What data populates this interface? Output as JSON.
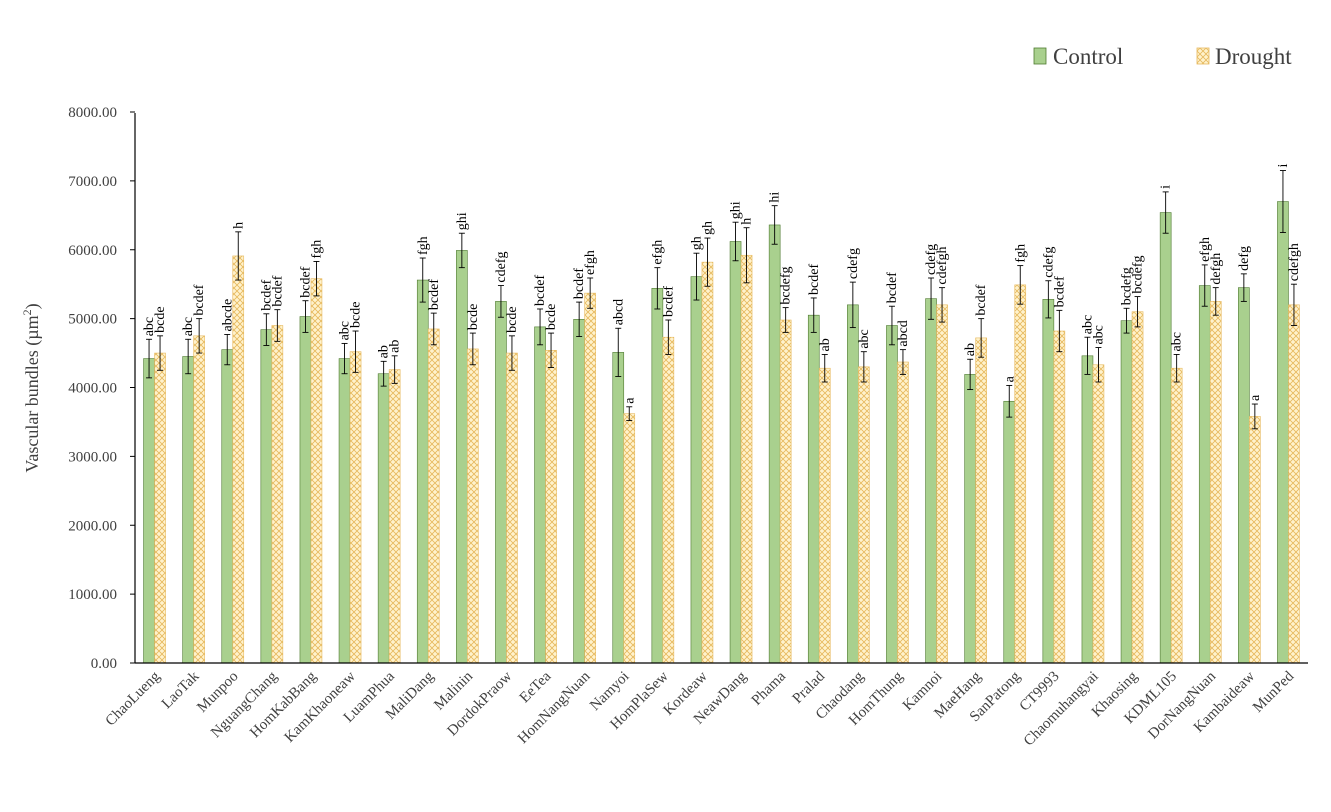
{
  "chart_data": {
    "type": "bar",
    "ylabel": "Vascular bundles (µm²)",
    "ylabel_main": "Vascular bundles (µm",
    "ylabel_sup": "2",
    "ylabel_tail": ")",
    "ylim": [
      0,
      8000
    ],
    "yticks": [
      "0.00",
      "1000.00",
      "2000.00",
      "3000.00",
      "4000.00",
      "5000.00",
      "6000.00",
      "7000.00",
      "8000.00"
    ],
    "legend_position": "top-right",
    "grid": false,
    "categories": [
      "ChaoLueng",
      "LaoTak",
      "Munpoo",
      "NguangChang",
      "HomKabBang",
      "KamKhaoneaw",
      "LuamPhua",
      "MaliDang",
      "Malinin",
      "DordokPraow",
      "EeTea",
      "HomNangNuan",
      "Namyoi",
      "HomPlaSew",
      "Kordeaw",
      "NeawDang",
      "Phama",
      "Pralad",
      "Chaodang",
      "HomThung",
      "Kamnoi",
      "MaeHang",
      "SanPatong",
      "CT9993",
      "Chaomuhangyai",
      "Khaosing",
      "KDML105",
      "DorNangNuan",
      "Kambaideaw",
      "MunPed"
    ],
    "series": [
      {
        "name": "Control",
        "color": "#a9d08e",
        "values": [
          4420,
          4450,
          4550,
          4840,
          5030,
          4420,
          4200,
          5560,
          5990,
          5250,
          4880,
          4990,
          4510,
          5440,
          5610,
          6120,
          6360,
          5050,
          5200,
          4900,
          5290,
          4190,
          3800,
          5280,
          4460,
          4970,
          6540,
          5480,
          5450,
          6700
        ],
        "errors": [
          280,
          250,
          220,
          230,
          230,
          220,
          180,
          320,
          250,
          230,
          260,
          250,
          350,
          300,
          340,
          280,
          280,
          250,
          330,
          280,
          300,
          220,
          230,
          270,
          270,
          180,
          300,
          300,
          200,
          450
        ],
        "labels": [
          "abc",
          "abc",
          "abcde",
          "bcdef",
          "bcdef",
          "abc",
          "ab",
          "fgh",
          "ghi",
          "cdefg",
          "bcdef",
          "bcdef",
          "abcd",
          "efgh",
          "gh",
          "ghi",
          "hi",
          "bcdef",
          "cdefg",
          "bcdef",
          "cdefg",
          "ab",
          "a",
          "cdefg",
          "abc",
          "bcdefg",
          "i",
          "efgh",
          "defg",
          "i"
        ]
      },
      {
        "name": "Drought",
        "color": "#fff2cc",
        "values": [
          4500,
          4750,
          5910,
          4900,
          5580,
          4520,
          4260,
          4850,
          4560,
          4500,
          4540,
          5370,
          3620,
          4730,
          5820,
          5920,
          4980,
          4280,
          4300,
          4370,
          5200,
          4720,
          5490,
          4820,
          4330,
          5100,
          4280,
          5250,
          3580,
          5200
        ],
        "errors": [
          250,
          250,
          350,
          230,
          250,
          300,
          200,
          230,
          230,
          250,
          250,
          220,
          100,
          250,
          350,
          400,
          180,
          200,
          220,
          180,
          250,
          280,
          280,
          300,
          250,
          220,
          200,
          200,
          180,
          300
        ],
        "labels": [
          "bcde",
          "bcdef",
          "h",
          "bcdef",
          "fgh",
          "bcde",
          "ab",
          "bcdef",
          "bcde",
          "bcde",
          "bcde",
          "efgh",
          "a",
          "bcdef",
          "gh",
          "h",
          "bcdefg",
          "ab",
          "abc",
          "abcd",
          "cdefgh",
          "bcdef",
          "fgh",
          "bcdef",
          "abc",
          "bcdefg",
          "abc",
          "defgh",
          "a",
          "cdefgh"
        ]
      }
    ]
  }
}
